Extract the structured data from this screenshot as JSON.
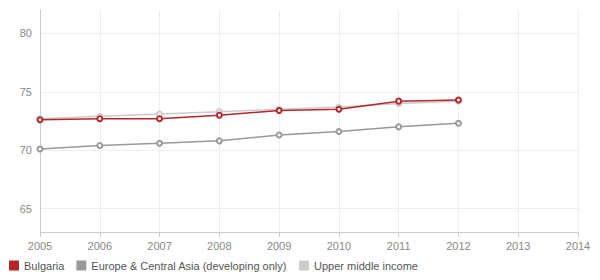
{
  "chart_data": {
    "type": "line",
    "x": [
      2005,
      2006,
      2007,
      2008,
      2009,
      2010,
      2011,
      2012
    ],
    "series": [
      {
        "name": "Bulgaria",
        "color": "#b5262b",
        "values": [
          72.6,
          72.7,
          72.7,
          73.0,
          73.4,
          73.5,
          74.2,
          74.3
        ]
      },
      {
        "name": "Europe & Central Asia (developing only)",
        "color": "#999999",
        "values": [
          70.1,
          70.4,
          70.6,
          70.8,
          71.3,
          71.6,
          72.0,
          72.3
        ]
      },
      {
        "name": "Upper middle income",
        "color": "#cccccc",
        "values": [
          72.7,
          72.9,
          73.1,
          73.3,
          73.5,
          73.7,
          74.0,
          74.2
        ]
      }
    ],
    "xlim": [
      2005,
      2014
    ],
    "xticks": [
      2005,
      2006,
      2007,
      2008,
      2009,
      2010,
      2011,
      2012,
      2013,
      2014
    ],
    "ylim": [
      63,
      82
    ],
    "yticks": [
      65,
      70,
      75,
      80
    ],
    "grid": true,
    "legend": "bottom-left",
    "marker": "circle"
  }
}
